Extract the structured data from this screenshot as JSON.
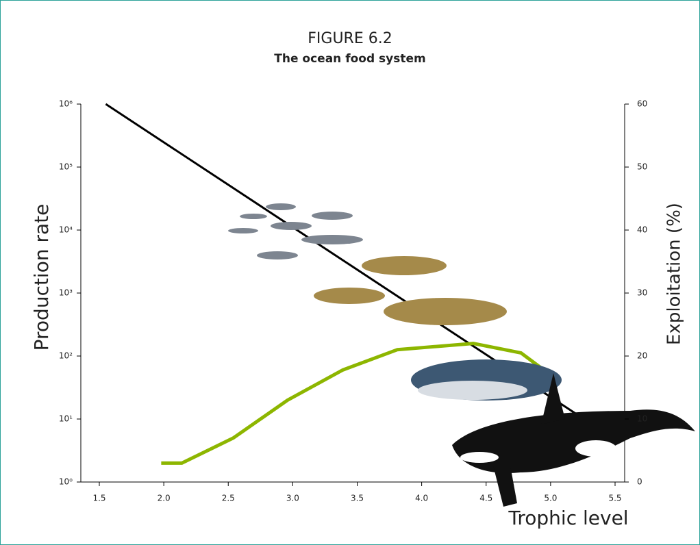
{
  "chart_data": {
    "type": "line",
    "title": "FIGURE 6.2",
    "subtitle": "The ocean food system",
    "xlabel": "Trophic level",
    "ylabel": "Production rate",
    "y2label": "Exploitation (%)",
    "xlim": [
      1.5,
      5.5
    ],
    "xticks": [
      1.5,
      {
        "value": 2,
        "label": "2.0"
      },
      2.5,
      {
        "value": 3,
        "label": "3.0"
      },
      3.5,
      {
        "value": 4,
        "label": "4.0"
      },
      4.5,
      {
        "value": 5,
        "label": "5.0"
      },
      5.5
    ],
    "yscale": "log",
    "ylim": [
      1,
      1000000
    ],
    "yticks": [
      {
        "value": 1,
        "label": "10⁰"
      },
      {
        "value": 10,
        "label": "10¹"
      },
      {
        "value": 100,
        "label": "10²"
      },
      {
        "value": 1000,
        "label": "10³"
      },
      {
        "value": 10000,
        "label": "10⁴"
      },
      {
        "value": 100000,
        "label": "10⁵"
      },
      {
        "value": 1000000,
        "label": "10⁶"
      }
    ],
    "y2lim": [
      0,
      60
    ],
    "y2ticks": [
      0,
      10,
      20,
      30,
      40,
      50,
      60
    ],
    "series": [
      {
        "color": "#000000",
        "x": [
          1.55,
          5.2
        ],
        "values": [
          1000000,
          12
        ]
      },
      {
        "color": "#8db600",
        "axis": "y2",
        "x": [
          1.98,
          2.14,
          2.54,
          2.96,
          3.39,
          3.81,
          4.4,
          4.77,
          5.0
        ],
        "values": [
          3,
          3,
          7,
          13,
          17.8,
          21,
          22,
          20.5,
          17
        ]
      }
    ]
  }
}
